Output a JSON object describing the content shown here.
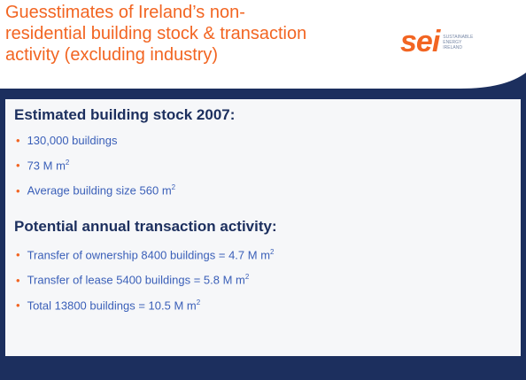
{
  "header": {
    "title_lines": [
      "Guesstimates of Ireland’s non-",
      "residential building stock & transaction",
      "activity (excluding industry)"
    ],
    "logo": {
      "mark": "sei",
      "tagline": [
        "SUSTAINABLE",
        "ENERGY",
        "IRELAND"
      ]
    }
  },
  "sections": [
    {
      "heading": "Estimated building stock 2007:",
      "bullets": [
        {
          "text": "130,000 buildings"
        },
        {
          "text": "73 M m",
          "sup": "2"
        },
        {
          "text": "Average building size 560 m",
          "sup": "2"
        }
      ]
    },
    {
      "heading": "Potential annual transaction activity:",
      "bullets": [
        {
          "text": "Transfer of ownership 8400 buildings = 4.7 M m",
          "sup": "2"
        },
        {
          "text": "Transfer of lease 5400 buildings = 5.8 M m",
          "sup": "2"
        },
        {
          "text": "Total 13800 buildings = 10.5 M m",
          "sup": "2"
        }
      ]
    }
  ]
}
